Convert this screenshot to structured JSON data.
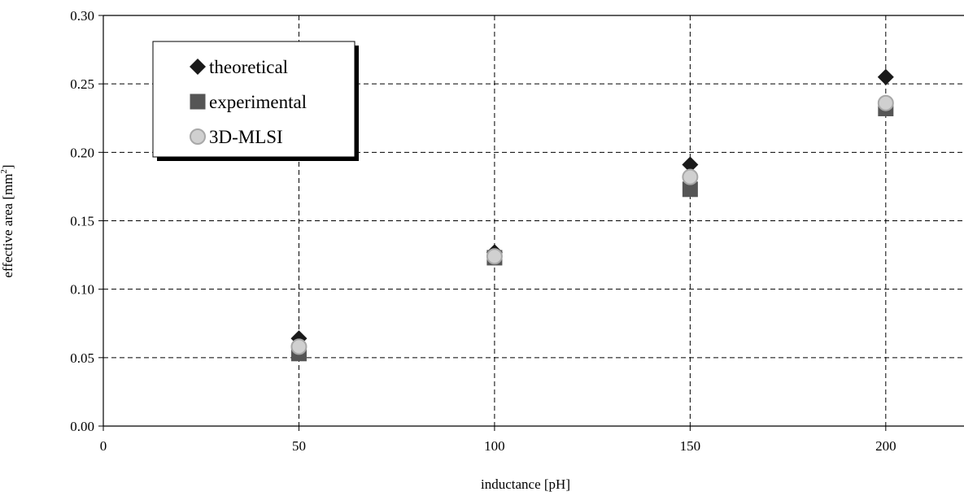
{
  "chart_data": {
    "type": "scatter",
    "title": "",
    "xlabel": "inductance [pH]",
    "ylabel": "effective area [mm",
    "ylabel_superscript": "2",
    "ylabel_suffix": "]",
    "xlim": [
      0,
      220
    ],
    "ylim": [
      0,
      0.3
    ],
    "x_ticks": [
      0,
      50,
      100,
      150,
      200
    ],
    "x_tick_labels": [
      "0",
      "50",
      "100",
      "150",
      "200"
    ],
    "y_ticks": [
      0,
      0.05,
      0.1,
      0.15,
      0.2,
      0.25,
      0.3
    ],
    "y_tick_labels": [
      "0.00",
      "0.05",
      "0.10",
      "0.15",
      "0.20",
      "0.25",
      "0.30"
    ],
    "grid": true,
    "legend_position": "top-left",
    "series": [
      {
        "name": "theoretical",
        "marker": "diamond",
        "color": "#1a1a1a",
        "x": [
          50,
          100,
          150,
          200
        ],
        "y": [
          0.064,
          0.127,
          0.191,
          0.255
        ]
      },
      {
        "name": "experimental",
        "marker": "square",
        "color": "#555555",
        "x": [
          50,
          100,
          150,
          200
        ],
        "y": [
          0.053,
          0.123,
          0.173,
          0.232
        ]
      },
      {
        "name": "3D-MLSI",
        "marker": "circle",
        "color": "#d0d0d0",
        "x": [
          50,
          100,
          150,
          200
        ],
        "y": [
          0.058,
          0.124,
          0.182,
          0.236
        ]
      }
    ]
  }
}
